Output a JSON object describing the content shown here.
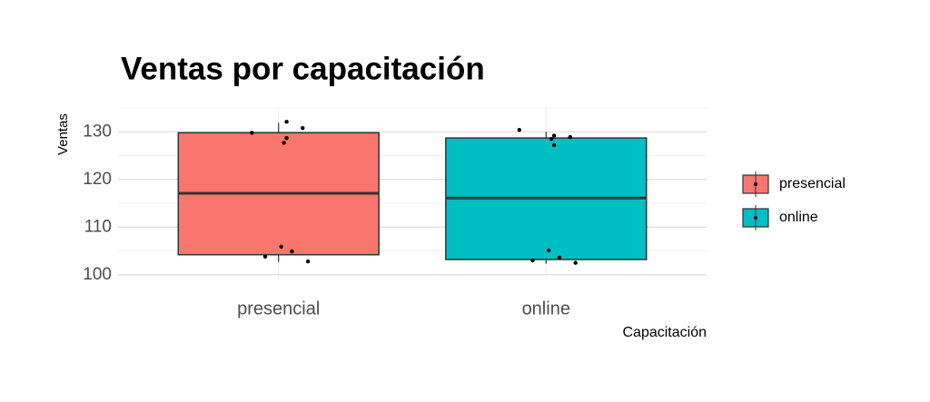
{
  "chart_data": {
    "type": "box",
    "title": "Ventas por capacitación",
    "x_label": "Capacitación",
    "y_label": "Ventas",
    "series": [
      {
        "name": "presencial",
        "color": "#f8766d",
        "min": 102.7,
        "q1": 104.2,
        "median": 117.1,
        "q3": 129.8,
        "max": 131.9,
        "points": [
          129.8,
          132.1,
          130.8,
          128.7,
          127.7,
          105.9,
          104.9,
          103.8,
          102.8
        ]
      },
      {
        "name": "online",
        "color": "#00bfc4",
        "min": 102.3,
        "q1": 103.2,
        "median": 116.1,
        "q3": 128.7,
        "max": 130.0,
        "points": [
          130.4,
          127.2,
          128.9,
          129.2,
          128.5,
          105.1,
          103.6,
          103.0,
          102.5
        ]
      }
    ],
    "ylim": [
      99,
      135
    ],
    "yticks": [
      100,
      110,
      120,
      130
    ],
    "grid": true,
    "legend": "right"
  }
}
